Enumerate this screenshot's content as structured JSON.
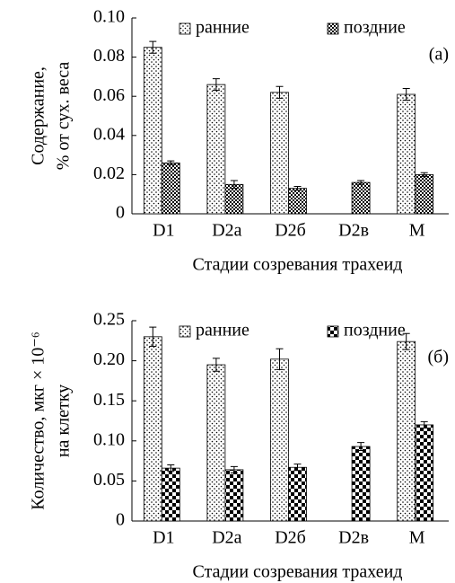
{
  "chart_data": [
    {
      "type": "bar",
      "label": "(а)",
      "ylabel": [
        "Содержание,",
        "% от сух. веса"
      ],
      "xlabel": "Стадии созревания трахеид",
      "categories": [
        "D1",
        "D2a",
        "D2б",
        "D2в",
        "M"
      ],
      "series": [
        {
          "name": "ранние",
          "values": [
            0.085,
            0.066,
            0.062,
            null,
            0.061
          ],
          "errors": [
            0.003,
            0.003,
            0.003,
            null,
            0.003
          ]
        },
        {
          "name": "поздние",
          "values": [
            0.026,
            0.015,
            0.013,
            0.016,
            0.02
          ],
          "errors": [
            0.001,
            0.002,
            0.001,
            0.001,
            0.001
          ]
        }
      ],
      "ylim": [
        0,
        0.1
      ],
      "yticks": [
        0,
        0.02,
        0.04,
        0.06,
        0.08,
        {
          "value": 0.1,
          "label": "0.10"
        }
      ]
    },
    {
      "type": "bar",
      "label": "(б)",
      "ylabel": [
        "Количество, мкг × 10⁻⁶",
        "на клетку"
      ],
      "xlabel": "Стадии созревания трахеид",
      "categories": [
        "D1",
        "D2a",
        "D2б",
        "D2в",
        "M"
      ],
      "series": [
        {
          "name": "ранние",
          "values": [
            0.23,
            0.195,
            0.202,
            null,
            0.224
          ],
          "errors": [
            0.012,
            0.008,
            0.013,
            null,
            0.01
          ]
        },
        {
          "name": "поздние",
          "values": [
            0.066,
            0.064,
            0.067,
            0.093,
            0.12
          ],
          "errors": [
            0.004,
            0.004,
            0.004,
            0.005,
            0.004
          ]
        }
      ],
      "ylim": [
        0,
        0.25
      ],
      "yticks": [
        0,
        0.05,
        {
          "value": 0.1,
          "label": "0.10"
        },
        0.15,
        {
          "value": 0.2,
          "label": "0.20"
        },
        0.25
      ]
    }
  ]
}
